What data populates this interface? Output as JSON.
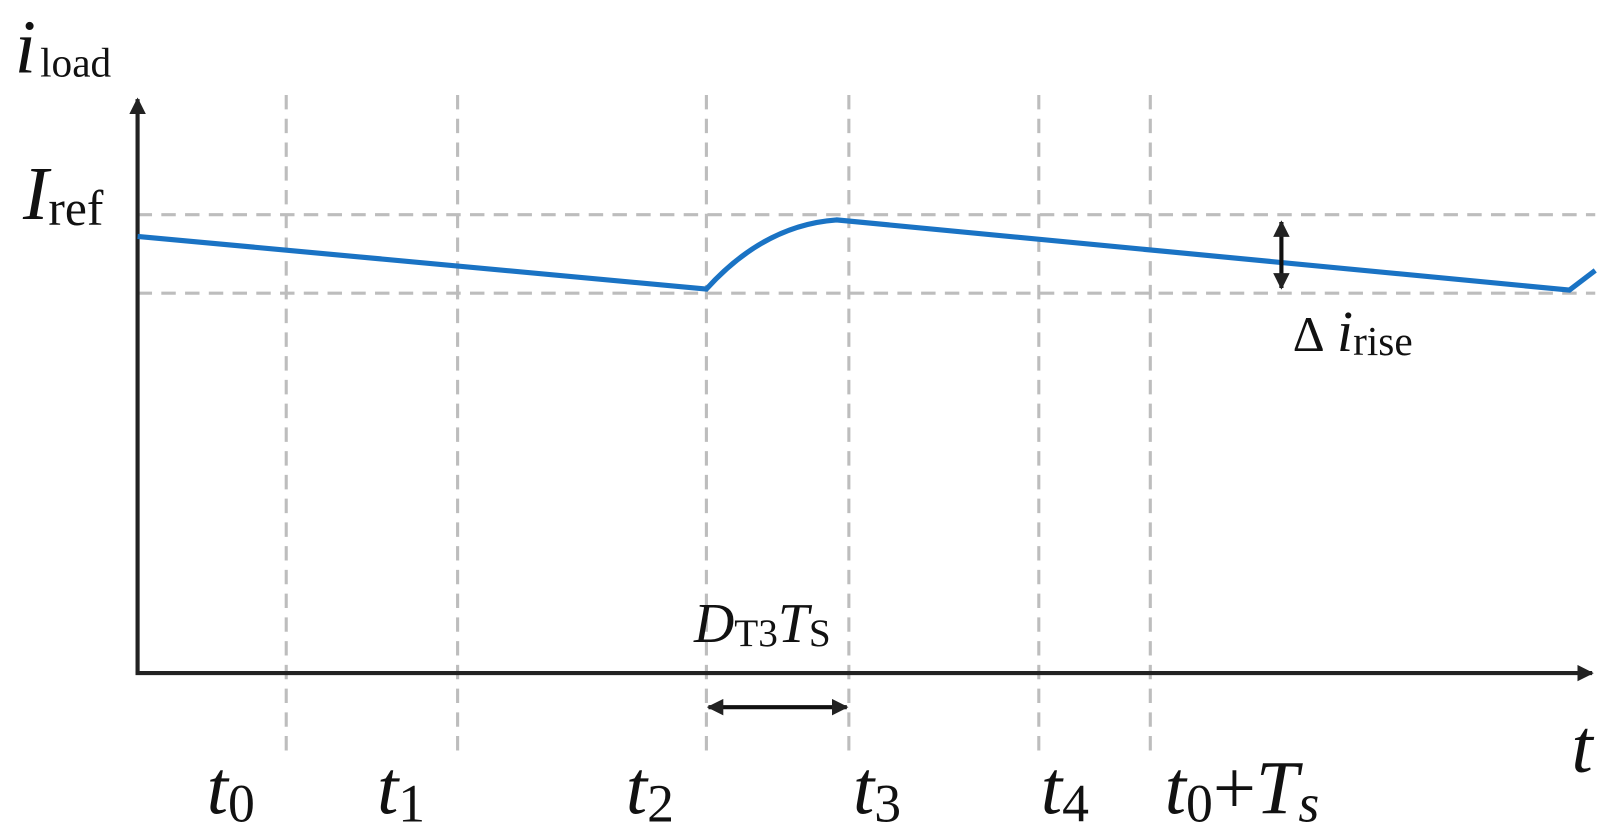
{
  "y_axis_label": {
    "main": "i",
    "sub": "load"
  },
  "x_axis_label": "t",
  "reference_label": {
    "main": "I",
    "sub": "ref"
  },
  "ripple_label": {
    "delta": "Δ",
    "main": "i",
    "sub": "rise"
  },
  "interval_label": {
    "main1": "D",
    "sub1": "T3",
    "main2": "T",
    "sub2": "S"
  },
  "time_labels": [
    {
      "main": "t",
      "sub": "0"
    },
    {
      "main": "t",
      "sub": "1"
    },
    {
      "main": "t",
      "sub": "2"
    },
    {
      "main": "t",
      "sub": "3"
    },
    {
      "main": "t",
      "sub": "4"
    },
    {
      "main": "t",
      "sub": "0",
      "op": "+",
      "main2": "T",
      "sub2": "s"
    }
  ]
}
